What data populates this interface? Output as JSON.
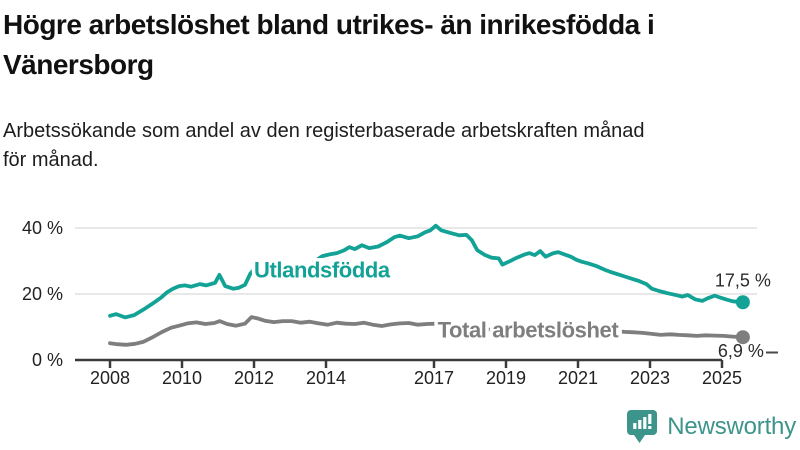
{
  "header": {
    "title_line1": "Högre arbetslöshet bland utrikes- än inrikesfödda i",
    "title_line2": "Vänersborg",
    "subtitle_line1": "Arbetssökande som andel av den registerbaserade arbetskraften månad",
    "subtitle_line2": "för månad."
  },
  "footer": {
    "brand": "Newsworthy",
    "brand_color": "#3d948a",
    "logo_icon": "bar-chart-speech-bubble-icon"
  },
  "chart_data": {
    "type": "line",
    "title": "Högre arbetslöshet bland utrikes- än inrikesfödda i Vänersborg",
    "subtitle": "Arbetssökande som andel av den registerbaserade arbetskraften månad för månad.",
    "unit": "%",
    "grid": "horizontal-only",
    "legend_position": "inline-labels",
    "x_axis": {
      "ticks": [
        2008,
        2010,
        2012,
        2014,
        2017,
        2019,
        2021,
        2023,
        2025
      ],
      "range": [
        2007.7,
        2025.8
      ]
    },
    "y_axis": {
      "ticks": [
        0,
        20,
        40
      ],
      "tick_labels": [
        "0 %",
        "20 %",
        "40 %"
      ],
      "gridlines": [
        20,
        40
      ],
      "range": [
        0,
        44
      ]
    },
    "series": [
      {
        "name": "Utlandsfödda",
        "color": "#13a296",
        "end_label": "17,5 %",
        "end_value": 17.5,
        "label_anchor": [
          2012.0,
          25.0
        ],
        "points": [
          [
            2008.0,
            13.4
          ],
          [
            2008.17,
            13.9
          ],
          [
            2008.42,
            12.9
          ],
          [
            2008.67,
            13.6
          ],
          [
            2008.92,
            15.2
          ],
          [
            2009.17,
            17.0
          ],
          [
            2009.42,
            18.9
          ],
          [
            2009.58,
            20.5
          ],
          [
            2009.75,
            21.6
          ],
          [
            2009.92,
            22.4
          ],
          [
            2010.08,
            22.6
          ],
          [
            2010.25,
            22.2
          ],
          [
            2010.5,
            23.0
          ],
          [
            2010.67,
            22.6
          ],
          [
            2010.92,
            23.4
          ],
          [
            2011.04,
            25.8
          ],
          [
            2011.2,
            22.4
          ],
          [
            2011.42,
            21.6
          ],
          [
            2011.58,
            21.9
          ],
          [
            2011.75,
            22.8
          ],
          [
            2011.9,
            26.2
          ],
          [
            2012.05,
            28.0
          ],
          [
            2012.2,
            26.3
          ],
          [
            2012.35,
            25.4
          ],
          [
            2012.55,
            25.0
          ],
          [
            2012.75,
            24.6
          ],
          [
            2012.95,
            24.8
          ],
          [
            2013.1,
            25.0
          ],
          [
            2013.3,
            25.8
          ],
          [
            2013.5,
            27.5
          ],
          [
            2013.7,
            30.0
          ],
          [
            2013.9,
            31.5
          ],
          [
            2014.1,
            32.0
          ],
          [
            2014.3,
            32.4
          ],
          [
            2014.5,
            33.2
          ],
          [
            2014.65,
            34.2
          ],
          [
            2014.8,
            33.6
          ],
          [
            2015.0,
            34.8
          ],
          [
            2015.2,
            33.9
          ],
          [
            2015.45,
            34.4
          ],
          [
            2015.7,
            35.8
          ],
          [
            2015.9,
            37.2
          ],
          [
            2016.05,
            37.7
          ],
          [
            2016.3,
            36.9
          ],
          [
            2016.55,
            37.5
          ],
          [
            2016.75,
            38.7
          ],
          [
            2016.9,
            39.3
          ],
          [
            2017.05,
            40.7
          ],
          [
            2017.2,
            39.3
          ],
          [
            2017.45,
            38.5
          ],
          [
            2017.7,
            37.8
          ],
          [
            2017.9,
            37.9
          ],
          [
            2018.05,
            36.3
          ],
          [
            2018.2,
            33.3
          ],
          [
            2018.4,
            31.9
          ],
          [
            2018.6,
            31.0
          ],
          [
            2018.8,
            30.8
          ],
          [
            2018.9,
            28.9
          ],
          [
            2019.1,
            29.9
          ],
          [
            2019.3,
            31.0
          ],
          [
            2019.5,
            31.9
          ],
          [
            2019.65,
            32.4
          ],
          [
            2019.8,
            31.8
          ],
          [
            2019.95,
            33.0
          ],
          [
            2020.1,
            31.3
          ],
          [
            2020.3,
            32.3
          ],
          [
            2020.45,
            32.7
          ],
          [
            2020.6,
            32.1
          ],
          [
            2020.8,
            31.3
          ],
          [
            2020.95,
            30.4
          ],
          [
            2021.1,
            29.8
          ],
          [
            2021.3,
            29.2
          ],
          [
            2021.5,
            28.5
          ],
          [
            2021.75,
            27.3
          ],
          [
            2021.9,
            26.7
          ],
          [
            2022.1,
            26.0
          ],
          [
            2022.3,
            25.3
          ],
          [
            2022.5,
            24.6
          ],
          [
            2022.7,
            23.9
          ],
          [
            2022.9,
            23.0
          ],
          [
            2023.05,
            21.6
          ],
          [
            2023.25,
            20.9
          ],
          [
            2023.5,
            20.2
          ],
          [
            2023.75,
            19.6
          ],
          [
            2023.9,
            19.2
          ],
          [
            2024.05,
            19.7
          ],
          [
            2024.25,
            18.4
          ],
          [
            2024.45,
            17.9
          ],
          [
            2024.6,
            18.7
          ],
          [
            2024.8,
            19.5
          ],
          [
            2024.95,
            18.9
          ],
          [
            2025.1,
            18.4
          ],
          [
            2025.3,
            17.8
          ],
          [
            2025.58,
            17.5
          ]
        ]
      },
      {
        "name": "Total arbetslöshet",
        "color": "#7e7e7e",
        "end_label": "6,9 %",
        "end_value": 6.9,
        "label_anchor": [
          2017.1,
          6.8
        ],
        "points": [
          [
            2008.0,
            5.1
          ],
          [
            2008.2,
            4.8
          ],
          [
            2008.45,
            4.6
          ],
          [
            2008.7,
            4.9
          ],
          [
            2008.92,
            5.5
          ],
          [
            2009.2,
            7.0
          ],
          [
            2009.45,
            8.5
          ],
          [
            2009.7,
            9.8
          ],
          [
            2009.92,
            10.4
          ],
          [
            2010.15,
            11.1
          ],
          [
            2010.4,
            11.4
          ],
          [
            2010.65,
            10.9
          ],
          [
            2010.9,
            11.2
          ],
          [
            2011.05,
            11.8
          ],
          [
            2011.25,
            10.9
          ],
          [
            2011.5,
            10.4
          ],
          [
            2011.75,
            11.0
          ],
          [
            2011.93,
            13.0
          ],
          [
            2012.1,
            12.6
          ],
          [
            2012.3,
            11.9
          ],
          [
            2012.55,
            11.5
          ],
          [
            2012.8,
            11.8
          ],
          [
            2013.05,
            11.8
          ],
          [
            2013.3,
            11.3
          ],
          [
            2013.55,
            11.6
          ],
          [
            2013.8,
            11.1
          ],
          [
            2014.05,
            10.7
          ],
          [
            2014.3,
            11.3
          ],
          [
            2014.55,
            11.0
          ],
          [
            2014.8,
            10.9
          ],
          [
            2015.05,
            11.3
          ],
          [
            2015.3,
            10.7
          ],
          [
            2015.55,
            10.3
          ],
          [
            2015.8,
            10.8
          ],
          [
            2016.05,
            11.1
          ],
          [
            2016.3,
            11.2
          ],
          [
            2016.55,
            10.7
          ],
          [
            2016.8,
            10.9
          ],
          [
            2017.05,
            11.0
          ],
          [
            2017.3,
            10.6
          ],
          [
            2017.55,
            10.3
          ],
          [
            2017.8,
            10.0
          ],
          [
            2018.05,
            9.8
          ],
          [
            2018.3,
            9.4
          ],
          [
            2018.55,
            9.2
          ],
          [
            2018.8,
            9.1
          ],
          [
            2019.05,
            9.2
          ],
          [
            2019.3,
            9.0
          ],
          [
            2019.55,
            9.1
          ],
          [
            2019.8,
            9.3
          ],
          [
            2020.05,
            9.6
          ],
          [
            2020.3,
            10.2
          ],
          [
            2020.55,
            10.0
          ],
          [
            2020.8,
            9.7
          ],
          [
            2021.05,
            9.6
          ],
          [
            2021.3,
            9.3
          ],
          [
            2021.55,
            9.0
          ],
          [
            2021.8,
            8.8
          ],
          [
            2022.05,
            8.7
          ],
          [
            2022.3,
            8.5
          ],
          [
            2022.55,
            8.4
          ],
          [
            2022.8,
            8.2
          ],
          [
            2023.05,
            7.9
          ],
          [
            2023.3,
            7.6
          ],
          [
            2023.55,
            7.8
          ],
          [
            2023.8,
            7.6
          ],
          [
            2024.05,
            7.5
          ],
          [
            2024.3,
            7.3
          ],
          [
            2024.55,
            7.5
          ],
          [
            2024.8,
            7.4
          ],
          [
            2025.05,
            7.3
          ],
          [
            2025.3,
            7.1
          ],
          [
            2025.58,
            6.9
          ]
        ]
      }
    ]
  }
}
